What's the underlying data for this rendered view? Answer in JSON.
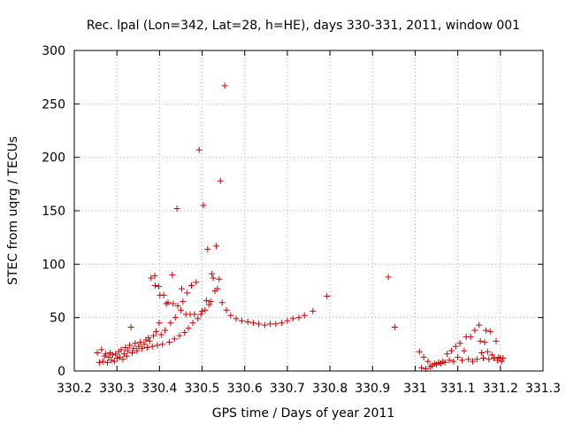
{
  "chart_data": {
    "type": "scatter",
    "title": "Rec. lpal (Lon=342, Lat=28, h=HE), days 330-331, 2011, window 001",
    "xlabel": "GPS time / Days of year 2011",
    "ylabel": "STEC from uqrg / TECUs",
    "xlim": [
      330.2,
      331.3
    ],
    "ylim": [
      0,
      300
    ],
    "x_ticks": [
      330.2,
      330.3,
      330.4,
      330.5,
      330.6,
      330.7,
      330.8,
      330.9,
      331,
      331.1,
      331.2,
      331.3
    ],
    "x_tick_labels": [
      "330.2",
      "330.3",
      "330.4",
      "330.5",
      "330.6",
      "330.7",
      "330.8",
      "330.9",
      "331",
      "331.1",
      "331.2",
      "331.3"
    ],
    "y_ticks": [
      0,
      50,
      100,
      150,
      200,
      250,
      300
    ],
    "y_tick_labels": [
      "0",
      "50",
      "100",
      "150",
      "200",
      "250",
      "300"
    ],
    "grid": true,
    "marker": "+",
    "marker_color": "#cc0000",
    "series": [
      {
        "points": [
          [
            330.254,
            17
          ],
          [
            330.259,
            8
          ],
          [
            330.264,
            20
          ],
          [
            330.267,
            9
          ],
          [
            330.271,
            14
          ],
          [
            330.274,
            16
          ],
          [
            330.278,
            8
          ],
          [
            330.281,
            13
          ],
          [
            330.284,
            17
          ],
          [
            330.287,
            10
          ],
          [
            330.29,
            15
          ],
          [
            330.294,
            9
          ],
          [
            330.297,
            16
          ],
          [
            330.301,
            12
          ],
          [
            330.304,
            18
          ],
          [
            330.307,
            13
          ],
          [
            330.31,
            20
          ],
          [
            330.314,
            11
          ],
          [
            330.317,
            16
          ],
          [
            330.32,
            22
          ],
          [
            330.323,
            14
          ],
          [
            330.326,
            19
          ],
          [
            330.33,
            24
          ],
          [
            330.333,
            41
          ],
          [
            330.336,
            17
          ],
          [
            330.339,
            21
          ],
          [
            330.343,
            26
          ],
          [
            330.347,
            19
          ],
          [
            330.351,
            23
          ],
          [
            330.355,
            27
          ],
          [
            330.359,
            21
          ],
          [
            330.364,
            25
          ],
          [
            330.368,
            29
          ],
          [
            330.371,
            22
          ],
          [
            330.374,
            31
          ],
          [
            330.377,
            28
          ],
          [
            330.38,
            87
          ],
          [
            330.383,
            23
          ],
          [
            330.386,
            33
          ],
          [
            330.389,
            89
          ],
          [
            330.39,
            80
          ],
          [
            330.392,
            37
          ],
          [
            330.395,
            24
          ],
          [
            330.398,
            79
          ],
          [
            330.399,
            45
          ],
          [
            330.401,
            71
          ],
          [
            330.404,
            34
          ],
          [
            330.407,
            25
          ],
          [
            330.41,
            71
          ],
          [
            330.413,
            38
          ],
          [
            330.416,
            63
          ],
          [
            330.42,
            64
          ],
          [
            330.423,
            27
          ],
          [
            330.426,
            45
          ],
          [
            330.43,
            90
          ],
          [
            330.432,
            63
          ],
          [
            330.435,
            30
          ],
          [
            330.437,
            50
          ],
          [
            330.441,
            152
          ],
          [
            330.443,
            61
          ],
          [
            330.447,
            33
          ],
          [
            330.45,
            57
          ],
          [
            330.452,
            77
          ],
          [
            330.455,
            65
          ],
          [
            330.459,
            36
          ],
          [
            330.462,
            53
          ],
          [
            330.465,
            73
          ],
          [
            330.468,
            40
          ],
          [
            330.472,
            53
          ],
          [
            330.475,
            80
          ],
          [
            330.478,
            45
          ],
          [
            330.482,
            53
          ],
          [
            330.486,
            83
          ],
          [
            330.49,
            49
          ],
          [
            330.493,
            207
          ],
          [
            330.497,
            53
          ],
          [
            330.5,
            56
          ],
          [
            330.503,
            155
          ],
          [
            330.507,
            57
          ],
          [
            330.51,
            66
          ],
          [
            330.513,
            114
          ],
          [
            330.516,
            62
          ],
          [
            330.52,
            65
          ],
          [
            330.523,
            91
          ],
          [
            330.526,
            87
          ],
          [
            330.53,
            75
          ],
          [
            330.533,
            117
          ],
          [
            330.536,
            77
          ],
          [
            330.54,
            86
          ],
          [
            330.543,
            178
          ],
          [
            330.547,
            64
          ],
          [
            330.553,
            267
          ],
          [
            330.557,
            57
          ],
          [
            330.567,
            52
          ],
          [
            330.58,
            49
          ],
          [
            330.593,
            47
          ],
          [
            330.607,
            46
          ],
          [
            330.62,
            45
          ],
          [
            330.633,
            44
          ],
          [
            330.647,
            43
          ],
          [
            330.66,
            44
          ],
          [
            330.673,
            44
          ],
          [
            330.687,
            45
          ],
          [
            330.7,
            47
          ],
          [
            330.713,
            49
          ],
          [
            330.727,
            50
          ],
          [
            330.74,
            52
          ],
          [
            330.76,
            56
          ],
          [
            330.793,
            70
          ],
          [
            330.937,
            88
          ],
          [
            330.952,
            41
          ],
          [
            331.01,
            18
          ],
          [
            331.015,
            3
          ],
          [
            331.02,
            13
          ],
          [
            331.025,
            2
          ],
          [
            331.03,
            9
          ],
          [
            331.035,
            4
          ],
          [
            331.04,
            5
          ],
          [
            331.045,
            7
          ],
          [
            331.05,
            6
          ],
          [
            331.055,
            8
          ],
          [
            331.06,
            7
          ],
          [
            331.065,
            9
          ],
          [
            331.07,
            8
          ],
          [
            331.075,
            16
          ],
          [
            331.08,
            10
          ],
          [
            331.085,
            19
          ],
          [
            331.09,
            9
          ],
          [
            331.095,
            23
          ],
          [
            331.1,
            13
          ],
          [
            331.105,
            26
          ],
          [
            331.11,
            10
          ],
          [
            331.115,
            19
          ],
          [
            331.12,
            32
          ],
          [
            331.125,
            11
          ],
          [
            331.13,
            32
          ],
          [
            331.135,
            9
          ],
          [
            331.14,
            38
          ],
          [
            331.145,
            11
          ],
          [
            331.15,
            43
          ],
          [
            331.153,
            28
          ],
          [
            331.156,
            17
          ],
          [
            331.16,
            12
          ],
          [
            331.163,
            27
          ],
          [
            331.166,
            38
          ],
          [
            331.17,
            18
          ],
          [
            331.173,
            11
          ],
          [
            331.176,
            37
          ],
          [
            331.18,
            15
          ],
          [
            331.185,
            12
          ],
          [
            331.19,
            28
          ],
          [
            331.193,
            10
          ],
          [
            331.196,
            13
          ],
          [
            331.2,
            12
          ],
          [
            331.203,
            9
          ],
          [
            331.206,
            12
          ]
        ]
      }
    ]
  }
}
